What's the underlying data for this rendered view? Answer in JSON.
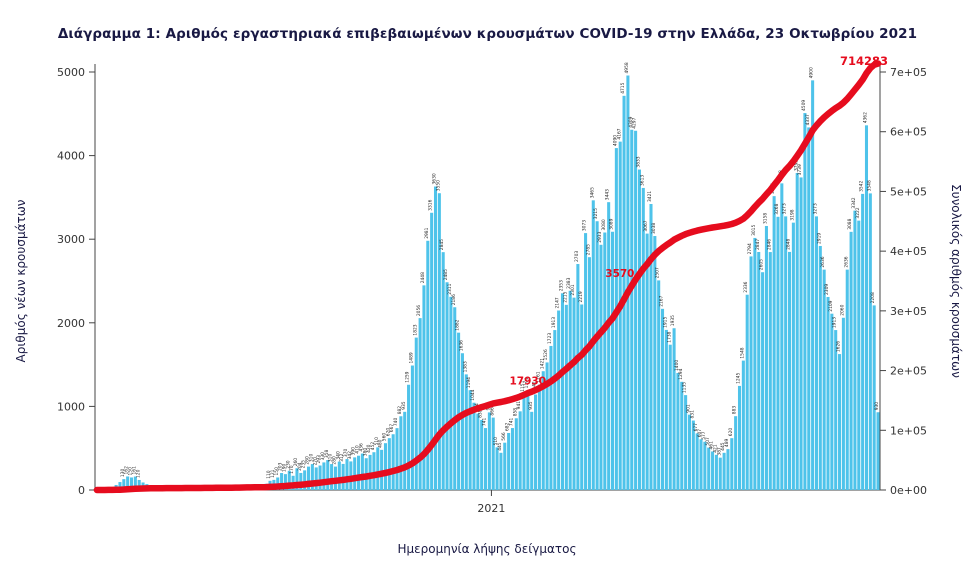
{
  "colors": {
    "bar": "#4ec3ea",
    "cumulative_line": "#e60c1e",
    "title_text": "#191944",
    "axis_text": "#333333",
    "bar_label_text": "#2a2a2a",
    "annotation_text": "#e60c1e"
  },
  "chart_data": {
    "type": "bar",
    "title": "Διάγραμμα 1: Αριθμός εργαστηριακά επιβεβαιωμένων κρουσμάτων COVID-19 στην Ελλάδα, 23 Οκτωβρίου 2021",
    "xlabel": "Ημερομηνία λήψης δείγματος",
    "ylabel_left": "Αριθμός νέων κρουσμάτων",
    "ylabel_right": "Συνολικός αριθμός κρουσμάτων",
    "x_tick_labels": [
      "2021"
    ],
    "x_tick_fractions": [
      0.505
    ],
    "yleft_ticks": [
      0,
      1000,
      2000,
      3000,
      4000,
      5000
    ],
    "yleft_max": 5000,
    "yright_tick_labels": [
      "0e+00",
      "1e+05",
      "2e+05",
      "3e+05",
      "4e+05",
      "5e+05",
      "6e+05",
      "7e+05"
    ],
    "yright_tick_values": [
      0,
      100000,
      200000,
      300000,
      400000,
      500000,
      600000,
      700000
    ],
    "yright_max": 700000,
    "grid": false,
    "legend": "none",
    "series": [
      {
        "name": "daily_new_cases",
        "type": "bar",
        "values": [
          4,
          7,
          10,
          21,
          35,
          60,
          95,
          130,
          162,
          150,
          161,
          120,
          90,
          70,
          55,
          40,
          30,
          22,
          18,
          15,
          12,
          10,
          15,
          10,
          8,
          12,
          20,
          15,
          10,
          18,
          25,
          30,
          20,
          28,
          35,
          30,
          25,
          40,
          50,
          43,
          35,
          50,
          28,
          60,
          75,
          110,
          121,
          150,
          203,
          190,
          230,
          170,
          260,
          204,
          235,
          280,
          310,
          270,
          293,
          330,
          358,
          310,
          280,
          340,
          312,
          370,
          342,
          390,
          410,
          436,
          380,
          420,
          452,
          510,
          480,
          560,
          620,
          667,
          740,
          882,
          935,
          1259,
          1489,
          1823,
          2056,
          2448,
          2981,
          3316,
          3630,
          3550,
          2845,
          2485,
          2311,
          2186,
          1882,
          1636,
          1383,
          1194,
          1044,
          914,
          838,
          741,
          928,
          866,
          510,
          445,
          566,
          682,
          741,
          858,
          941,
          1151,
          1191,
          935,
          1142,
          1261,
          1421,
          1526,
          1723,
          1913,
          2147,
          2353,
          2215,
          2383,
          2301,
          2703,
          2219,
          3073,
          2785,
          3465,
          3215,
          2933,
          3080,
          3443,
          3089,
          4090,
          4167,
          4715,
          4958,
          4309,
          4297,
          3833,
          3613,
          3067,
          3421,
          3038,
          2507,
          2167,
          1915,
          1738,
          1935,
          1400,
          1294,
          1135,
          901,
          831,
          677,
          607,
          577,
          507,
          461,
          421,
          387,
          445,
          489,
          620,
          883,
          1245,
          1548,
          2336,
          2794,
          3015,
          2847,
          2605,
          3158,
          2846,
          3515,
          3268,
          3668,
          3273,
          2848,
          3198,
          3792,
          3739,
          4509,
          4337,
          4900,
          3273,
          2919,
          2636,
          2309,
          2109,
          1913,
          1626,
          2060,
          2636,
          3088,
          3342,
          3222,
          3542,
          4362,
          3548,
          2208,
          930
        ]
      },
      {
        "name": "cumulative_cases",
        "type": "line",
        "derived": "cumulative_of_daily_new_cases_normalized",
        "final_value": 714283
      }
    ],
    "annotations": [
      {
        "text": "17930",
        "at_cumulative": 179300,
        "position": "mid"
      },
      {
        "text": "3570",
        "at_cumulative": 357000,
        "position": "mid"
      },
      {
        "text": "714283",
        "at_cumulative": 714283,
        "position": "end"
      }
    ]
  }
}
